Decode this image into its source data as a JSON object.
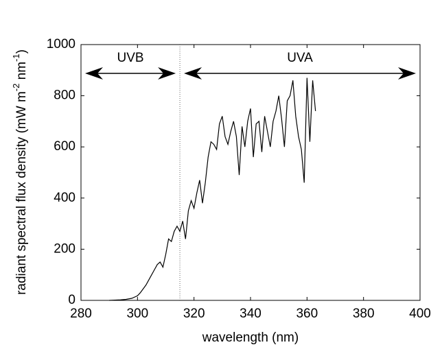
{
  "chart_data": {
    "type": "line",
    "xlabel": "wavelength (nm)",
    "ylabel": [
      "radiant spectral flux density (mW m",
      "-2",
      " nm",
      "-1",
      ")"
    ],
    "xlim": [
      280,
      400
    ],
    "xticks": [
      280,
      300,
      320,
      340,
      360,
      380,
      400
    ],
    "ylim": [
      0,
      1000
    ],
    "yticks": [
      0,
      200,
      400,
      600,
      800,
      1000
    ],
    "divider": 315,
    "regions": [
      {
        "label": "UVB",
        "from": 280,
        "to": 315
      },
      {
        "label": "UVA",
        "from": 315,
        "to": 400
      }
    ],
    "series": [
      {
        "color": "#000000",
        "x": [
          290,
          292,
          294,
          296,
          298,
          300,
          301,
          302,
          303,
          304,
          305,
          306,
          307,
          308,
          309,
          310,
          311,
          312,
          313,
          314,
          315,
          316,
          317,
          318,
          319,
          320,
          321,
          322,
          323,
          324,
          325,
          326,
          327,
          328,
          329,
          330,
          331,
          332,
          333,
          334,
          335,
          336,
          337,
          338,
          339,
          340,
          341,
          342,
          343,
          344,
          345,
          346,
          347,
          348,
          349,
          350,
          351,
          352,
          353,
          354,
          355,
          356,
          357,
          358,
          359,
          360,
          361,
          362,
          363
        ],
        "values": [
          0,
          1,
          2,
          4,
          8,
          18,
          30,
          45,
          60,
          80,
          100,
          120,
          140,
          150,
          130,
          180,
          240,
          230,
          270,
          290,
          270,
          310,
          240,
          350,
          390,
          360,
          420,
          470,
          380,
          460,
          560,
          620,
          610,
          590,
          690,
          720,
          640,
          610,
          660,
          700,
          640,
          490,
          680,
          600,
          700,
          750,
          560,
          690,
          700,
          580,
          720,
          660,
          600,
          700,
          740,
          800,
          710,
          600,
          780,
          800,
          860,
          720,
          640,
          590,
          460,
          870,
          620,
          860,
          740
        ]
      }
    ]
  }
}
